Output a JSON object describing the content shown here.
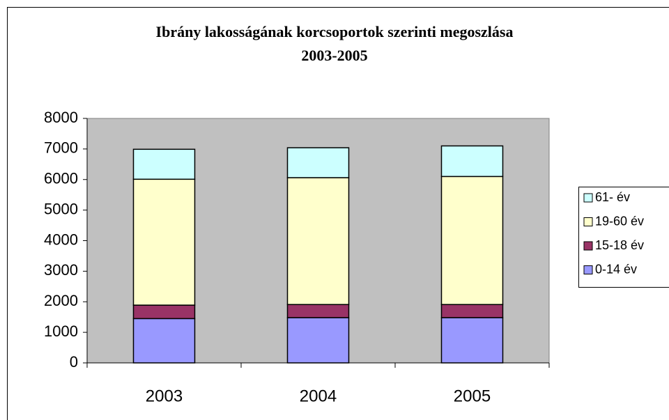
{
  "chart_data": {
    "type": "stacked_bar",
    "title": [
      "Ibrány lakosságának korcsoportok szerinti megoszlása",
      "2003-2005"
    ],
    "categories": [
      "2003",
      "2004",
      "2005"
    ],
    "series": [
      {
        "name": "0-14 év",
        "color": "#9999ff",
        "values": [
          1450,
          1480,
          1480
        ]
      },
      {
        "name": "15-18 év",
        "color": "#993366",
        "values": [
          440,
          430,
          430
        ]
      },
      {
        "name": "19-60 év",
        "color": "#ffffcc",
        "values": [
          4120,
          4150,
          4190
        ]
      },
      {
        "name": "61- év",
        "color": "#ccffff",
        "values": [
          980,
          980,
          1000
        ]
      }
    ],
    "ylim": [
      0,
      8000
    ],
    "yticks": [
      0,
      1000,
      2000,
      3000,
      4000,
      5000,
      6000,
      7000,
      8000
    ],
    "grid": false,
    "legend": "right"
  }
}
